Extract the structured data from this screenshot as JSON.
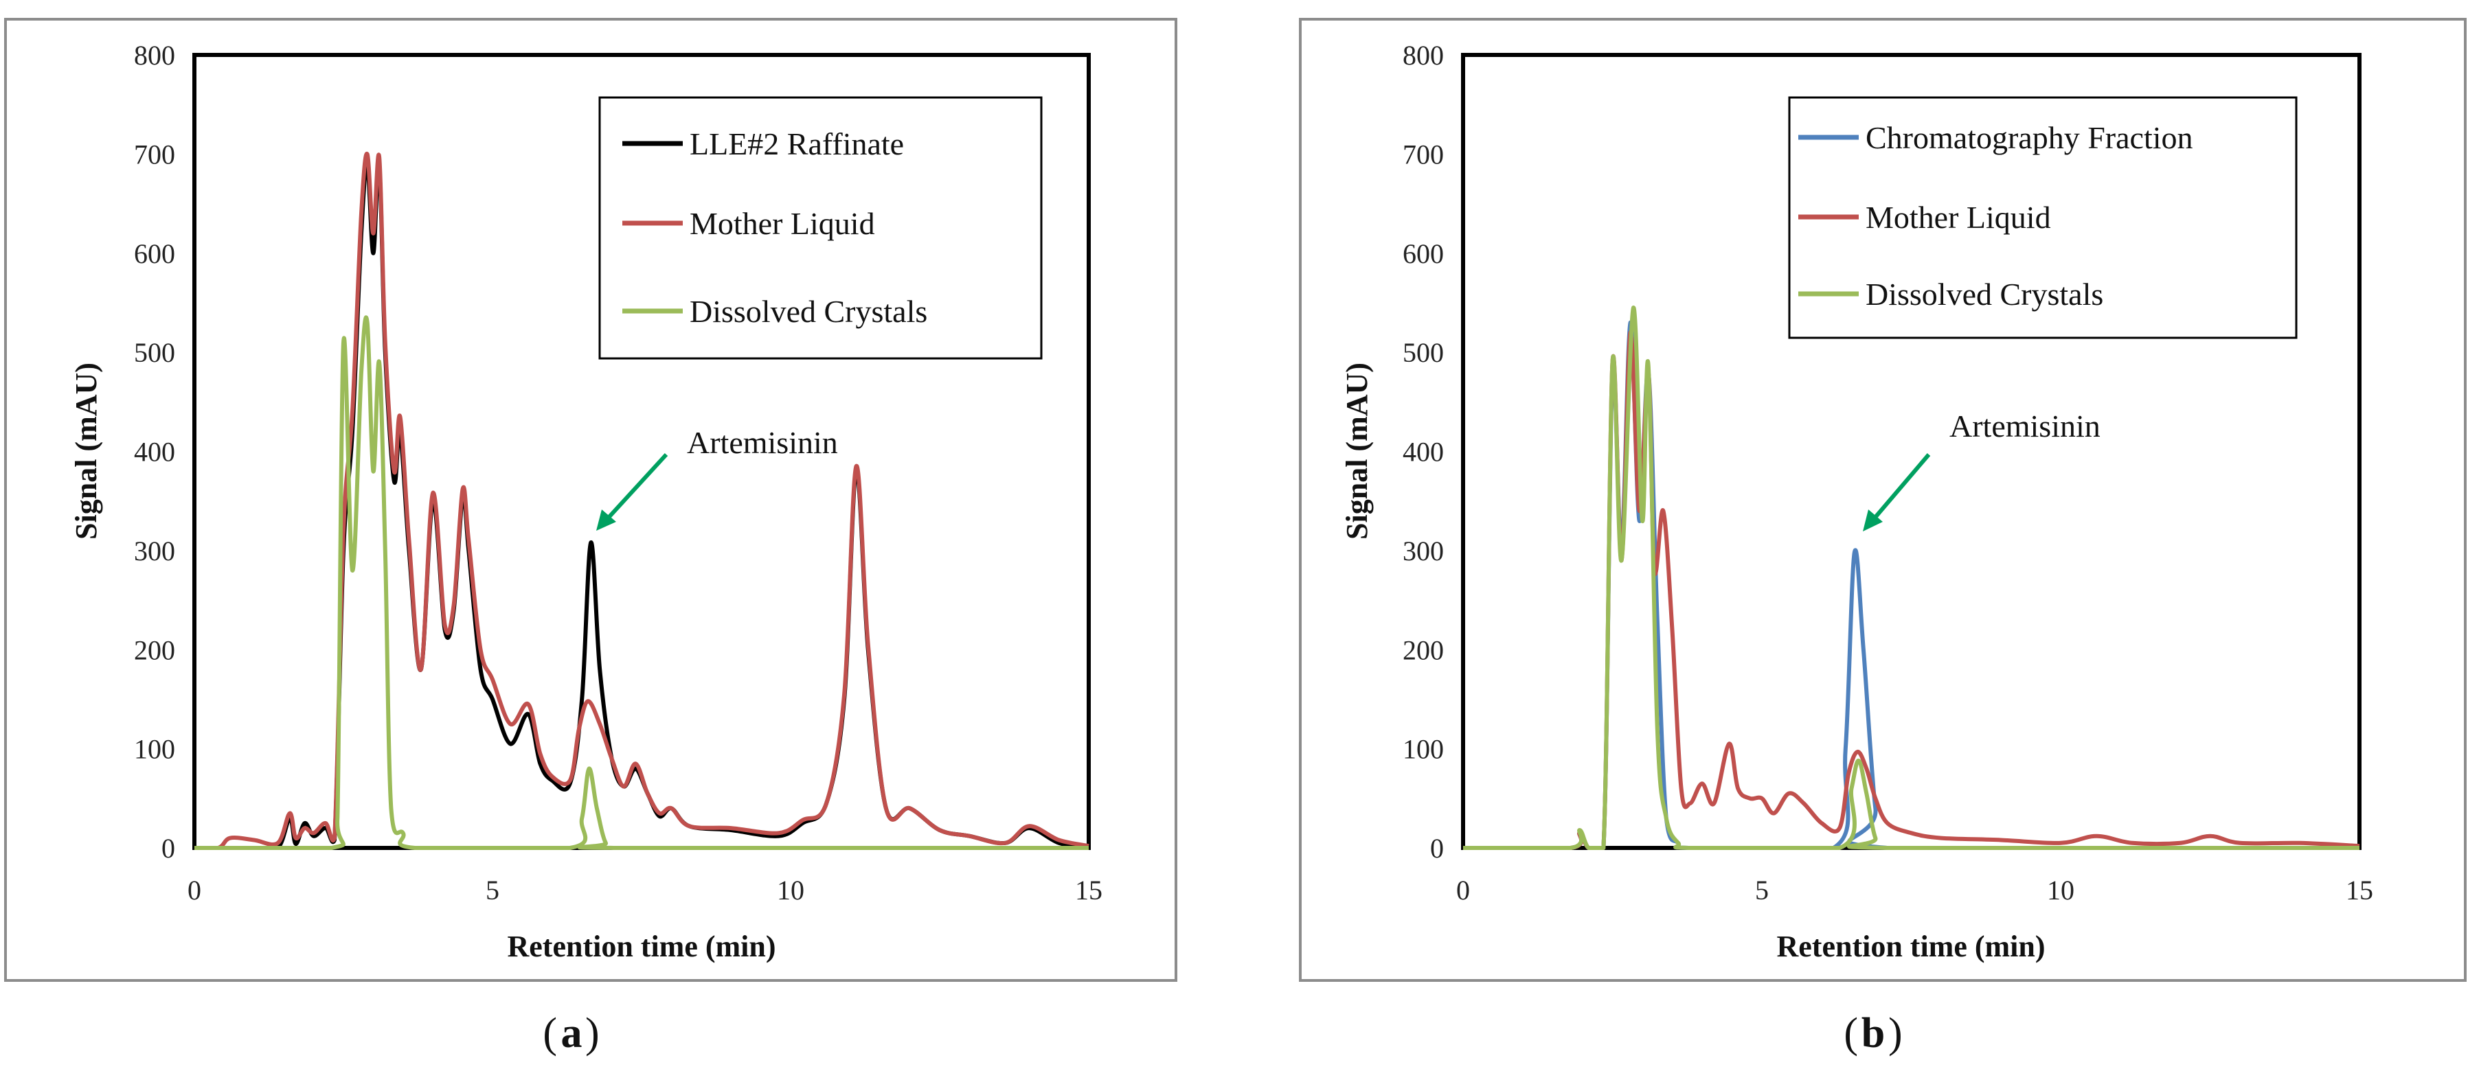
{
  "chart_data": [
    {
      "type": "line",
      "panel": "a",
      "caption": {
        "open": "(",
        "letter": "a",
        "close": ")"
      },
      "xlabel": "Retention time (min)",
      "ylabel": "Signal (mAU)",
      "xlim": [
        0,
        15
      ],
      "ylim": [
        0,
        800
      ],
      "xticks": [
        0,
        5,
        10,
        15
      ],
      "yticks": [
        0,
        100,
        200,
        300,
        400,
        500,
        600,
        700,
        800
      ],
      "legend_position": "top-right",
      "annotations": [
        {
          "text": "Artemisinin",
          "x": 6.7,
          "y": 310
        }
      ],
      "series": [
        {
          "name": "LLE#2 Raffinate",
          "color": "#000000",
          "points": [
            [
              0,
              0
            ],
            [
              1.0,
              0
            ],
            [
              1.4,
              0
            ],
            [
              1.6,
              30
            ],
            [
              1.7,
              4
            ],
            [
              1.85,
              25
            ],
            [
              2.0,
              12
            ],
            [
              2.2,
              20
            ],
            [
              2.35,
              8
            ],
            [
              2.5,
              300
            ],
            [
              2.65,
              420
            ],
            [
              2.8,
              620
            ],
            [
              2.9,
              690
            ],
            [
              3.0,
              600
            ],
            [
              3.1,
              690
            ],
            [
              3.2,
              500
            ],
            [
              3.35,
              370
            ],
            [
              3.45,
              420
            ],
            [
              3.6,
              300
            ],
            [
              3.8,
              180
            ],
            [
              4.0,
              350
            ],
            [
              4.2,
              220
            ],
            [
              4.35,
              240
            ],
            [
              4.5,
              355
            ],
            [
              4.6,
              300
            ],
            [
              4.8,
              180
            ],
            [
              5.0,
              150
            ],
            [
              5.3,
              105
            ],
            [
              5.6,
              135
            ],
            [
              5.8,
              85
            ],
            [
              6.0,
              68
            ],
            [
              6.3,
              65
            ],
            [
              6.5,
              150
            ],
            [
              6.65,
              308
            ],
            [
              6.8,
              180
            ],
            [
              7.0,
              90
            ],
            [
              7.2,
              62
            ],
            [
              7.4,
              80
            ],
            [
              7.6,
              55
            ],
            [
              7.8,
              32
            ],
            [
              8.0,
              40
            ],
            [
              8.3,
              22
            ],
            [
              9.0,
              18
            ],
            [
              9.8,
              12
            ],
            [
              10.2,
              25
            ],
            [
              10.6,
              45
            ],
            [
              10.9,
              150
            ],
            [
              11.1,
              380
            ],
            [
              11.3,
              200
            ],
            [
              11.6,
              40
            ],
            [
              12.0,
              40
            ],
            [
              12.5,
              18
            ],
            [
              13.0,
              12
            ],
            [
              13.6,
              5
            ],
            [
              14.0,
              20
            ],
            [
              14.5,
              5
            ],
            [
              15,
              0
            ]
          ]
        },
        {
          "name": "Mother Liquid",
          "color": "#c0504d",
          "points": [
            [
              0,
              0
            ],
            [
              0.4,
              0
            ],
            [
              0.6,
              10
            ],
            [
              1.0,
              8
            ],
            [
              1.4,
              5
            ],
            [
              1.6,
              35
            ],
            [
              1.7,
              10
            ],
            [
              1.85,
              20
            ],
            [
              2.0,
              15
            ],
            [
              2.2,
              25
            ],
            [
              2.35,
              10
            ],
            [
              2.5,
              320
            ],
            [
              2.65,
              440
            ],
            [
              2.8,
              640
            ],
            [
              2.9,
              700
            ],
            [
              3.0,
              620
            ],
            [
              3.1,
              697
            ],
            [
              3.2,
              510
            ],
            [
              3.35,
              380
            ],
            [
              3.45,
              435
            ],
            [
              3.6,
              310
            ],
            [
              3.8,
              180
            ],
            [
              4.0,
              358
            ],
            [
              4.2,
              225
            ],
            [
              4.35,
              245
            ],
            [
              4.5,
              362
            ],
            [
              4.6,
              310
            ],
            [
              4.8,
              200
            ],
            [
              5.0,
              170
            ],
            [
              5.3,
              125
            ],
            [
              5.6,
              145
            ],
            [
              5.8,
              95
            ],
            [
              6.0,
              72
            ],
            [
              6.3,
              68
            ],
            [
              6.45,
              120
            ],
            [
              6.6,
              148
            ],
            [
              6.8,
              125
            ],
            [
              7.0,
              90
            ],
            [
              7.2,
              62
            ],
            [
              7.4,
              85
            ],
            [
              7.6,
              55
            ],
            [
              7.8,
              35
            ],
            [
              8.0,
              40
            ],
            [
              8.3,
              22
            ],
            [
              9.0,
              20
            ],
            [
              9.8,
              15
            ],
            [
              10.2,
              28
            ],
            [
              10.6,
              45
            ],
            [
              10.9,
              155
            ],
            [
              11.1,
              385
            ],
            [
              11.3,
              205
            ],
            [
              11.6,
              40
            ],
            [
              12.0,
              40
            ],
            [
              12.5,
              18
            ],
            [
              13.0,
              12
            ],
            [
              13.6,
              5
            ],
            [
              14.0,
              22
            ],
            [
              14.5,
              8
            ],
            [
              15,
              2
            ]
          ]
        },
        {
          "name": "Dissolved Crystals",
          "color": "#9bbb59",
          "points": [
            [
              0,
              0
            ],
            [
              2.3,
              0
            ],
            [
              2.4,
              30
            ],
            [
              2.5,
              510
            ],
            [
              2.65,
              280
            ],
            [
              2.8,
              480
            ],
            [
              2.9,
              530
            ],
            [
              3.0,
              380
            ],
            [
              3.1,
              490
            ],
            [
              3.2,
              300
            ],
            [
              3.3,
              40
            ],
            [
              3.5,
              15
            ],
            [
              3.7,
              0
            ],
            [
              6.3,
              0
            ],
            [
              6.5,
              30
            ],
            [
              6.62,
              80
            ],
            [
              6.75,
              40
            ],
            [
              6.9,
              5
            ],
            [
              7.1,
              0
            ],
            [
              15,
              0
            ]
          ]
        }
      ]
    },
    {
      "type": "line",
      "panel": "b",
      "caption": {
        "open": "(",
        "letter": "b",
        "close": ")"
      },
      "xlabel": "Retention time (min)",
      "ylabel": "Signal (mAU)",
      "xlim": [
        0,
        15
      ],
      "ylim": [
        0,
        800
      ],
      "xticks": [
        0,
        5,
        10,
        15
      ],
      "yticks": [
        0,
        100,
        200,
        300,
        400,
        500,
        600,
        700,
        800
      ],
      "legend_position": "top-right",
      "annotations": [
        {
          "text": "Artemisinin",
          "x": 6.6,
          "y": 300
        }
      ],
      "series": [
        {
          "name": "Chromatography Fraction",
          "color": "#4f81bd",
          "points": [
            [
              0,
              0
            ],
            [
              1.8,
              0
            ],
            [
              1.95,
              15
            ],
            [
              2.1,
              0
            ],
            [
              2.35,
              0
            ],
            [
              2.5,
              480
            ],
            [
              2.65,
              300
            ],
            [
              2.8,
              530
            ],
            [
              2.95,
              330
            ],
            [
              3.1,
              480
            ],
            [
              3.25,
              230
            ],
            [
              3.4,
              30
            ],
            [
              3.6,
              5
            ],
            [
              3.8,
              0
            ],
            [
              6.2,
              0
            ],
            [
              6.4,
              100
            ],
            [
              6.55,
              298
            ],
            [
              6.7,
              200
            ],
            [
              6.9,
              40
            ],
            [
              7.1,
              0
            ],
            [
              15,
              0
            ]
          ]
        },
        {
          "name": "Mother Liquid",
          "color": "#c0504d",
          "points": [
            [
              0,
              0
            ],
            [
              1.8,
              0
            ],
            [
              1.95,
              15
            ],
            [
              2.1,
              0
            ],
            [
              2.35,
              0
            ],
            [
              2.5,
              490
            ],
            [
              2.65,
              290
            ],
            [
              2.8,
              520
            ],
            [
              2.95,
              340
            ],
            [
              3.1,
              480
            ],
            [
              3.2,
              280
            ],
            [
              3.35,
              340
            ],
            [
              3.5,
              220
            ],
            [
              3.65,
              60
            ],
            [
              3.8,
              45
            ],
            [
              4.0,
              65
            ],
            [
              4.2,
              45
            ],
            [
              4.45,
              105
            ],
            [
              4.6,
              60
            ],
            [
              4.8,
              50
            ],
            [
              5.0,
              50
            ],
            [
              5.2,
              35
            ],
            [
              5.45,
              55
            ],
            [
              5.7,
              45
            ],
            [
              6.0,
              25
            ],
            [
              6.3,
              20
            ],
            [
              6.45,
              75
            ],
            [
              6.6,
              97
            ],
            [
              6.75,
              80
            ],
            [
              6.9,
              50
            ],
            [
              7.1,
              25
            ],
            [
              7.5,
              15
            ],
            [
              8.0,
              10
            ],
            [
              9.0,
              8
            ],
            [
              10.0,
              5
            ],
            [
              10.6,
              12
            ],
            [
              11.2,
              5
            ],
            [
              12.0,
              5
            ],
            [
              12.5,
              12
            ],
            [
              13.0,
              5
            ],
            [
              14.0,
              5
            ],
            [
              15,
              2
            ]
          ]
        },
        {
          "name": "Dissolved Crystals",
          "color": "#9bbb59",
          "points": [
            [
              0,
              0
            ],
            [
              1.8,
              0
            ],
            [
              1.95,
              18
            ],
            [
              2.1,
              0
            ],
            [
              2.35,
              0
            ],
            [
              2.5,
              490
            ],
            [
              2.65,
              290
            ],
            [
              2.85,
              545
            ],
            [
              3.0,
              330
            ],
            [
              3.1,
              487
            ],
            [
              3.25,
              120
            ],
            [
              3.4,
              30
            ],
            [
              3.6,
              5
            ],
            [
              3.8,
              0
            ],
            [
              6.3,
              0
            ],
            [
              6.5,
              60
            ],
            [
              6.62,
              88
            ],
            [
              6.75,
              55
            ],
            [
              6.9,
              10
            ],
            [
              7.1,
              0
            ],
            [
              15,
              0
            ]
          ]
        }
      ]
    }
  ]
}
